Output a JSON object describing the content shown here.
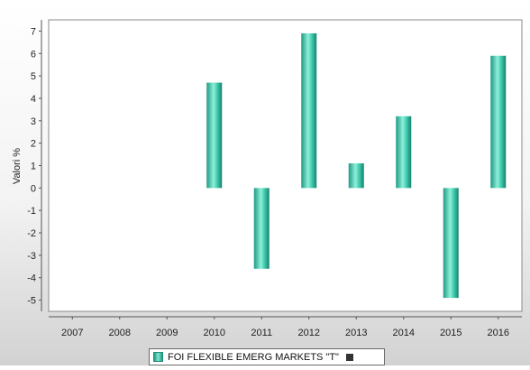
{
  "chart_data": {
    "type": "bar",
    "categories": [
      "2007",
      "2008",
      "2009",
      "2010",
      "2011",
      "2012",
      "2013",
      "2014",
      "2015",
      "2016"
    ],
    "series": [
      {
        "name": "FOI FLEXIBLE EMERG MARKETS \"T\"",
        "values": [
          null,
          null,
          null,
          4.7,
          -3.6,
          6.9,
          1.1,
          3.2,
          -4.9,
          5.9
        ],
        "color": "#3fc9aa"
      }
    ],
    "title": "",
    "xlabel": "",
    "ylabel": "Valori %",
    "ylim": [
      -5.5,
      7.5
    ],
    "yticks": [
      "7",
      "6",
      "5",
      "4",
      "3",
      "2",
      "1",
      "0",
      "-1",
      "-2",
      "-3",
      "-4",
      "-5"
    ],
    "grid": false,
    "legend_position": "bottom"
  }
}
